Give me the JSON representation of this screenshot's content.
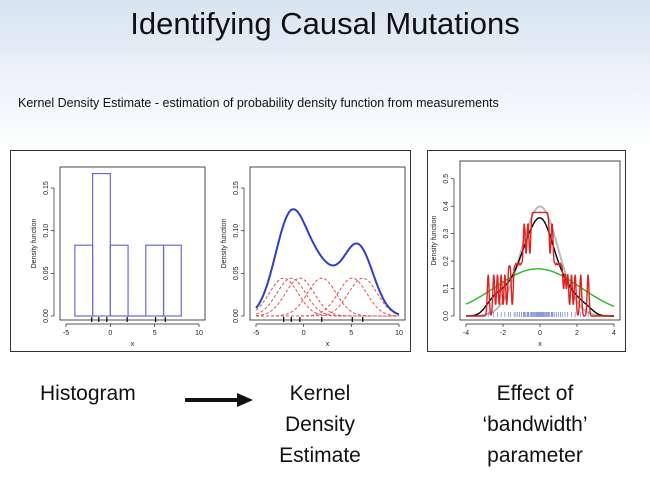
{
  "slide": {
    "title": "Identifying Causal Mutations",
    "subtitle": "Kernel Density Estimate - estimation of probability density function from measurements"
  },
  "captions": {
    "histogram": "Histogram",
    "kde": [
      "Kernel",
      "Density",
      "Estimate"
    ],
    "bandwidth": [
      "Effect of",
      "‘bandwidth’",
      "parameter"
    ]
  },
  "chart_data": [
    {
      "type": "bar",
      "name": "histogram",
      "xlabel": "x",
      "ylabel": "Density function",
      "xlim": [
        -5,
        10
      ],
      "ylim": [
        0,
        0.17
      ],
      "xticks": [
        "-5",
        "0",
        "5",
        "10"
      ],
      "yticks": [
        "0.00",
        "0.05",
        "0.10",
        "0.15"
      ],
      "bins": [
        {
          "x0": -4,
          "x1": -2,
          "value": 0.083
        },
        {
          "x0": -2,
          "x1": 0,
          "value": 0.167
        },
        {
          "x0": 0,
          "x1": 2,
          "value": 0.083
        },
        {
          "x0": 2,
          "x1": 4,
          "value": 0.0
        },
        {
          "x0": 4,
          "x1": 6,
          "value": 0.083
        },
        {
          "x0": 6,
          "x1": 8,
          "value": 0.083
        }
      ],
      "rug": [
        -2.1,
        -1.3,
        -0.4,
        1.9,
        5.1,
        6.2
      ],
      "color": "#6b6bd6"
    },
    {
      "type": "line",
      "name": "kernel-density-estimate",
      "xlabel": "x",
      "ylabel": "Density function",
      "xlim": [
        -5,
        10
      ],
      "ylim": [
        0,
        0.17
      ],
      "xticks": [
        "-5",
        "0",
        "5",
        "10"
      ],
      "yticks": [
        "0.00",
        "0.05",
        "0.10",
        "0.15"
      ],
      "points": [
        -2.1,
        -1.3,
        -0.4,
        1.9,
        5.1,
        6.2
      ],
      "bandwidth": 1.5,
      "kde_color": "#2b3fc9",
      "kernel_color": "#e05050"
    },
    {
      "type": "line",
      "name": "bandwidth-effect",
      "xlabel": "x",
      "ylabel": "Density function",
      "xlim": [
        -4,
        4
      ],
      "ylim": [
        0,
        0.55
      ],
      "xticks": [
        "-4",
        "-2",
        "0",
        "2",
        "4"
      ],
      "yticks": [
        "0.0",
        "0.1",
        "0.2",
        "0.3",
        "0.4",
        "0.5"
      ],
      "series": [
        {
          "bandwidth": 2.0,
          "color": "#22bb22"
        },
        {
          "bandwidth": 0.35,
          "color": "#000000"
        },
        {
          "bandwidth": 0.05,
          "color": "#dd2222"
        }
      ],
      "true_density_color": "#bbbbbb",
      "samples": [
        -2.8,
        -2.5,
        -2.3,
        -2.1,
        -1.9,
        -1.7,
        -1.6,
        -1.4,
        -1.3,
        -1.2,
        -1.1,
        -1.0,
        -0.9,
        -0.85,
        -0.8,
        -0.7,
        -0.65,
        -0.6,
        -0.5,
        -0.45,
        -0.4,
        -0.35,
        -0.3,
        -0.25,
        -0.2,
        -0.15,
        -0.1,
        -0.05,
        0.0,
        0.05,
        0.1,
        0.15,
        0.2,
        0.25,
        0.3,
        0.35,
        0.4,
        0.45,
        0.5,
        0.6,
        0.65,
        0.7,
        0.8,
        0.9,
        1.0,
        1.1,
        1.2,
        1.35,
        1.5,
        1.7,
        1.9,
        2.2,
        2.6
      ]
    }
  ]
}
